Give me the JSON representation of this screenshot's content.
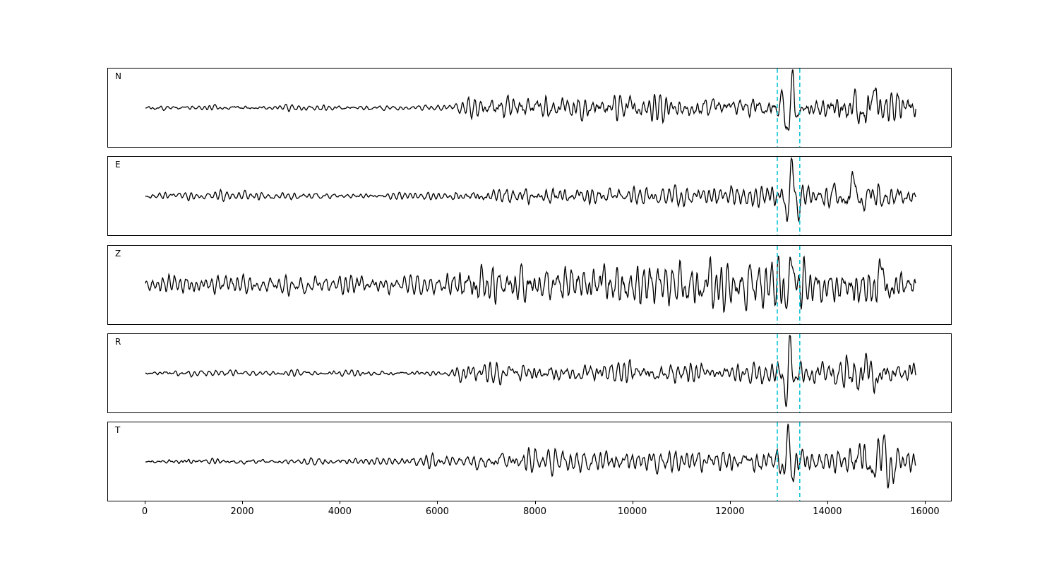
{
  "figure": {
    "description": "Five-channel seismic waveform plot with two picked arrival times marked by dashed cyan vertical lines"
  },
  "chart_data": {
    "type": "line",
    "title": "",
    "xlabel": "",
    "ylabel": "",
    "x_range": [
      0,
      16000
    ],
    "x_ticks": [
      0,
      2000,
      4000,
      6000,
      8000,
      10000,
      12000,
      14000,
      16000
    ],
    "trace_x_end": 15800,
    "trace_color": "#000000",
    "pick_color": "#12c4d6",
    "pick_lines": [
      12960,
      13420
    ],
    "grid": false,
    "legend": "none",
    "channels": [
      {
        "label": "N",
        "seed": 101,
        "amp": 52,
        "envelope": [
          [
            0,
            0.1
          ],
          [
            6200,
            0.11
          ],
          [
            6800,
            0.42
          ],
          [
            8200,
            0.5
          ],
          [
            10000,
            0.48
          ],
          [
            12400,
            0.42
          ],
          [
            12900,
            0.5
          ],
          [
            13400,
            0.55
          ],
          [
            13900,
            0.45
          ],
          [
            14400,
            0.65
          ],
          [
            14800,
            0.85
          ],
          [
            15300,
            0.75
          ],
          [
            15800,
            0.55
          ]
        ],
        "bursts": [
          {
            "x": 13220,
            "sigma": 140,
            "period": 230,
            "amp": 0.92,
            "phase": 0.0
          },
          {
            "x": 14900,
            "sigma": 380,
            "period": 430,
            "amp": 0.35,
            "phase": 1.2
          }
        ]
      },
      {
        "label": "E",
        "seed": 202,
        "amp": 50,
        "envelope": [
          [
            0,
            0.18
          ],
          [
            2500,
            0.18
          ],
          [
            4500,
            0.12
          ],
          [
            5800,
            0.14
          ],
          [
            6800,
            0.32
          ],
          [
            8500,
            0.4
          ],
          [
            11000,
            0.42
          ],
          [
            12700,
            0.5
          ],
          [
            13400,
            0.6
          ],
          [
            14000,
            0.5
          ],
          [
            14500,
            0.8
          ],
          [
            15000,
            0.6
          ],
          [
            15400,
            0.7
          ],
          [
            15800,
            0.5
          ]
        ],
        "bursts": [
          {
            "x": 13230,
            "sigma": 130,
            "period": 240,
            "amp": 0.95,
            "phase": 0.7
          },
          {
            "x": 14550,
            "sigma": 260,
            "period": 400,
            "amp": 0.45,
            "phase": 2.1
          }
        ]
      },
      {
        "label": "Z",
        "seed": 303,
        "amp": 52,
        "envelope": [
          [
            0,
            0.34
          ],
          [
            3000,
            0.3
          ],
          [
            5800,
            0.34
          ],
          [
            6600,
            0.75
          ],
          [
            8000,
            0.8
          ],
          [
            9500,
            0.85
          ],
          [
            11500,
            0.9
          ],
          [
            13000,
            0.85
          ],
          [
            13600,
            0.75
          ],
          [
            14300,
            0.6
          ],
          [
            14900,
            0.85
          ],
          [
            15400,
            0.6
          ],
          [
            15800,
            0.5
          ]
        ],
        "bursts": [
          {
            "x": 13200,
            "sigma": 150,
            "period": 260,
            "amp": 0.7,
            "phase": 0.4
          },
          {
            "x": 15050,
            "sigma": 200,
            "period": 380,
            "amp": 0.5,
            "phase": 1.0
          }
        ]
      },
      {
        "label": "R",
        "seed": 404,
        "amp": 50,
        "envelope": [
          [
            0,
            0.12
          ],
          [
            6200,
            0.11
          ],
          [
            6700,
            0.4
          ],
          [
            8000,
            0.35
          ],
          [
            9800,
            0.42
          ],
          [
            11500,
            0.38
          ],
          [
            12700,
            0.32
          ],
          [
            13450,
            0.5
          ],
          [
            14000,
            0.5
          ],
          [
            14600,
            0.7
          ],
          [
            15100,
            0.6
          ],
          [
            15800,
            0.5
          ]
        ],
        "bursts": [
          {
            "x": 13180,
            "sigma": 120,
            "period": 220,
            "amp": 1.0,
            "phase": 0.2
          },
          {
            "x": 14750,
            "sigma": 300,
            "period": 420,
            "amp": 0.4,
            "phase": 0.9
          }
        ]
      },
      {
        "label": "T",
        "seed": 505,
        "amp": 50,
        "envelope": [
          [
            0,
            0.13
          ],
          [
            5000,
            0.15
          ],
          [
            6500,
            0.3
          ],
          [
            8000,
            0.5
          ],
          [
            9200,
            0.55
          ],
          [
            10500,
            0.45
          ],
          [
            12400,
            0.42
          ],
          [
            12950,
            0.5
          ],
          [
            13450,
            0.6
          ],
          [
            14200,
            0.5
          ],
          [
            14700,
            0.85
          ],
          [
            15300,
            0.8
          ],
          [
            15800,
            0.55
          ]
        ],
        "bursts": [
          {
            "x": 13170,
            "sigma": 130,
            "period": 230,
            "amp": 0.95,
            "phase": 1.5
          },
          {
            "x": 15000,
            "sigma": 320,
            "period": 430,
            "amp": 0.45,
            "phase": 0.3
          }
        ]
      }
    ]
  }
}
